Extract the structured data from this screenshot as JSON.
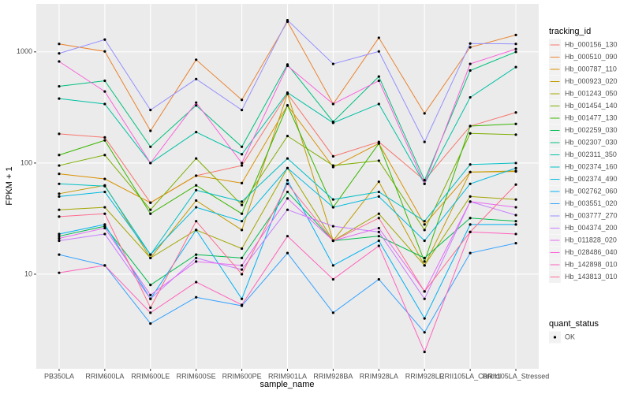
{
  "chart_data": {
    "type": "line",
    "log_y": true,
    "grid": true,
    "legend_position": "right",
    "x_label": "sample_name",
    "y_label": "FPKM + 1",
    "categories": [
      "PB350LA",
      "RRIM600LA",
      "RRIM600LE",
      "RRIM600SE",
      "RRIM600PE",
      "RRIM901LA",
      "RRIM928BA",
      "RRIM928LA",
      "RRIM928LE",
      "RRII105LA_Control",
      "RRII105LA_Stressed"
    ],
    "ylim": [
      1.41,
      2700
    ],
    "yticks": [
      10,
      100,
      1000
    ],
    "legend_title": "tracking_id",
    "series": [
      {
        "name": "Hb_000156_130",
        "color": "#F8766D",
        "values": [
          183,
          170,
          44,
          77,
          95,
          420,
          115,
          155,
          70,
          215,
          285
        ]
      },
      {
        "name": "Hb_000510_090",
        "color": "#EA8331",
        "values": [
          1180,
          1010,
          195,
          850,
          370,
          1870,
          340,
          1340,
          280,
          1100,
          1420
        ]
      },
      {
        "name": "Hb_000787_110",
        "color": "#D89000",
        "values": [
          80,
          72,
          44,
          77,
          66,
          330,
          92,
          150,
          28,
          83,
          84
        ]
      },
      {
        "name": "Hb_000923_020",
        "color": "#C09B00",
        "values": [
          53,
          63,
          14,
          46,
          25,
          420,
          20,
          68,
          12,
          83,
          85
        ]
      },
      {
        "name": "Hb_001243_050",
        "color": "#A3A500",
        "values": [
          38,
          40,
          14,
          25,
          17,
          90,
          20,
          35,
          12,
          50,
          47
        ]
      },
      {
        "name": "Hb_001454_140",
        "color": "#7CAE00",
        "values": [
          95,
          118,
          38,
          110,
          42,
          175,
          95,
          105,
          25,
          185,
          180
        ]
      },
      {
        "name": "Hb_001477_130",
        "color": "#39B600",
        "values": [
          118,
          160,
          35,
          63,
          35,
          330,
          40,
          150,
          13,
          215,
          225
        ]
      },
      {
        "name": "Hb_002259_030",
        "color": "#00BB4E",
        "values": [
          22,
          27,
          8,
          15,
          14,
          55,
          20,
          22,
          14,
          32,
          30
        ]
      },
      {
        "name": "Hb_002307_030",
        "color": "#00BF7D",
        "values": [
          490,
          550,
          140,
          330,
          140,
          770,
          235,
          600,
          70,
          680,
          1000
        ]
      },
      {
        "name": "Hb_002311_350",
        "color": "#00C1A3",
        "values": [
          380,
          340,
          100,
          190,
          120,
          430,
          230,
          340,
          65,
          390,
          730
        ]
      },
      {
        "name": "Hb_002374_160",
        "color": "#00BFC4",
        "values": [
          65,
          62,
          15,
          57,
          45,
          110,
          47,
          55,
          30,
          97,
          100
        ]
      },
      {
        "name": "Hb_002374_490",
        "color": "#00BAE0",
        "values": [
          50,
          55,
          15,
          40,
          30,
          90,
          40,
          50,
          20,
          65,
          90
        ]
      },
      {
        "name": "Hb_002762_060",
        "color": "#00B0F6",
        "values": [
          23,
          28,
          6,
          25,
          6,
          70,
          12,
          20,
          4,
          28,
          28
        ]
      },
      {
        "name": "Hb_003551_020",
        "color": "#35A2FF",
        "values": [
          15,
          12,
          3.6,
          6.2,
          5.2,
          15.5,
          4.5,
          9,
          3,
          15.5,
          19
        ]
      },
      {
        "name": "Hb_003777_270",
        "color": "#9590FF",
        "values": [
          970,
          1290,
          300,
          570,
          300,
          1930,
          780,
          1010,
          155,
          1190,
          1180
        ]
      },
      {
        "name": "Hb_004374_200",
        "color": "#C77CFF",
        "values": [
          20,
          23,
          6,
          14,
          11,
          38,
          27,
          24,
          6,
          45,
          34
        ]
      },
      {
        "name": "Hb_011828_020",
        "color": "#E76BF3",
        "values": [
          21,
          26,
          6.5,
          13,
          12,
          48,
          20,
          26,
          7,
          45,
          40
        ]
      },
      {
        "name": "Hb_028486_040",
        "color": "#FA62DB",
        "values": [
          820,
          440,
          100,
          350,
          100,
          750,
          340,
          550,
          65,
          780,
          1060
        ]
      },
      {
        "name": "Hb_142898_010",
        "color": "#FF62BC",
        "values": [
          10.3,
          12,
          4.5,
          8.5,
          5.3,
          22,
          9,
          18,
          2,
          24,
          23
        ]
      },
      {
        "name": "Hb_143813_010",
        "color": "#FF6C91",
        "values": [
          33,
          35,
          5,
          30,
          10,
          65,
          20,
          32,
          7,
          24,
          64
        ]
      }
    ],
    "shape_legend": {
      "title": "quant_status",
      "entries": [
        "OK"
      ]
    }
  }
}
